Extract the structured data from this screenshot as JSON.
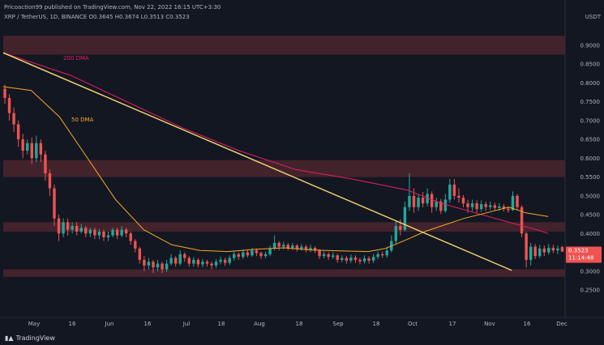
{
  "header": {
    "publisher_line": "Pricoaction99 published on TradingView.com, Nov 22, 2022 16:15 UTC+3:30",
    "symbol": "XRP / TetherUS, 1D, BINANCE",
    "open_label": "O",
    "open_value": "0.3645",
    "high_label": "H",
    "high_value": "0.3674",
    "low_label": "L",
    "low_value": "0.3513",
    "close_label": "C",
    "close_value": "0.3523"
  },
  "axis": {
    "unit": "USDT"
  },
  "badges": {
    "price": "0.3523",
    "countdown": "11:14:48"
  },
  "logo": {
    "text": "TradingView"
  },
  "annotations": {
    "dma200": "200 DMA",
    "dma50": "50 DMA"
  },
  "colors": {
    "background": "#131722",
    "zone": "#ef5350",
    "up": "#26a69a",
    "down": "#ef5350",
    "dma200": "#e91e63",
    "dma50": "#f9a825",
    "trendline": "#f5d76e"
  },
  "chart_data": {
    "type": "candlestick",
    "title": "",
    "ylabel": "USDT",
    "ylim": [
      0.22,
      0.96
    ],
    "grid": false,
    "y_ticks": [
      "0.9000",
      "0.8500",
      "0.8000",
      "0.7500",
      "0.7000",
      "0.6500",
      "0.6000",
      "0.5500",
      "0.5000",
      "0.4500",
      "0.4000",
      "0.3500",
      "0.3000",
      "0.2500"
    ],
    "x_ticks": [
      "May",
      "16",
      "Jun",
      "16",
      "Jul",
      "18",
      "Aug",
      "18",
      "Sep",
      "18",
      "Oct",
      "17",
      "Nov",
      "16",
      "Dec"
    ],
    "zones": [
      [
        0.875,
        0.925
      ],
      [
        0.55,
        0.595
      ],
      [
        0.405,
        0.43
      ],
      [
        0.285,
        0.305
      ]
    ],
    "dma200": [
      [
        0.0,
        0.88
      ],
      [
        0.12,
        0.82
      ],
      [
        0.22,
        0.75
      ],
      [
        0.32,
        0.68
      ],
      [
        0.42,
        0.62
      ],
      [
        0.52,
        0.57
      ],
      [
        0.62,
        0.545
      ],
      [
        0.72,
        0.515
      ],
      [
        0.78,
        0.48
      ],
      [
        0.84,
        0.455
      ],
      [
        0.9,
        0.43
      ],
      [
        0.95,
        0.41
      ],
      [
        0.97,
        0.4
      ]
    ],
    "dma50": [
      [
        0.0,
        0.79
      ],
      [
        0.05,
        0.78
      ],
      [
        0.1,
        0.71
      ],
      [
        0.15,
        0.6
      ],
      [
        0.2,
        0.49
      ],
      [
        0.25,
        0.41
      ],
      [
        0.3,
        0.37
      ],
      [
        0.35,
        0.355
      ],
      [
        0.4,
        0.352
      ],
      [
        0.45,
        0.358
      ],
      [
        0.5,
        0.362
      ],
      [
        0.55,
        0.356
      ],
      [
        0.6,
        0.354
      ],
      [
        0.65,
        0.352
      ],
      [
        0.68,
        0.36
      ],
      [
        0.72,
        0.385
      ],
      [
        0.75,
        0.405
      ],
      [
        0.78,
        0.42
      ],
      [
        0.82,
        0.44
      ],
      [
        0.86,
        0.455
      ],
      [
        0.9,
        0.47
      ],
      [
        0.93,
        0.455
      ],
      [
        0.97,
        0.445
      ]
    ],
    "trendline": [
      [
        0.0,
        0.88
      ],
      [
        0.905,
        0.302
      ]
    ],
    "candles": [
      [
        0.0,
        0.785,
        0.76,
        0.795,
        0.745
      ],
      [
        0.008,
        0.76,
        0.72,
        0.77,
        0.7
      ],
      [
        0.016,
        0.72,
        0.69,
        0.735,
        0.67
      ],
      [
        0.024,
        0.69,
        0.65,
        0.7,
        0.63
      ],
      [
        0.032,
        0.65,
        0.62,
        0.665,
        0.6
      ],
      [
        0.04,
        0.62,
        0.64,
        0.65,
        0.61
      ],
      [
        0.048,
        0.64,
        0.6,
        0.655,
        0.585
      ],
      [
        0.056,
        0.6,
        0.64,
        0.66,
        0.59
      ],
      [
        0.064,
        0.64,
        0.61,
        0.65,
        0.59
      ],
      [
        0.072,
        0.61,
        0.56,
        0.62,
        0.54
      ],
      [
        0.08,
        0.56,
        0.52,
        0.57,
        0.5
      ],
      [
        0.088,
        0.52,
        0.44,
        0.53,
        0.42
      ],
      [
        0.096,
        0.44,
        0.4,
        0.45,
        0.38
      ],
      [
        0.104,
        0.4,
        0.43,
        0.44,
        0.39
      ],
      [
        0.112,
        0.43,
        0.41,
        0.44,
        0.395
      ],
      [
        0.12,
        0.41,
        0.42,
        0.43,
        0.4
      ],
      [
        0.128,
        0.42,
        0.405,
        0.43,
        0.395
      ],
      [
        0.136,
        0.405,
        0.415,
        0.425,
        0.4
      ],
      [
        0.144,
        0.415,
        0.4,
        0.42,
        0.39
      ],
      [
        0.152,
        0.4,
        0.41,
        0.415,
        0.39
      ],
      [
        0.16,
        0.41,
        0.395,
        0.415,
        0.385
      ],
      [
        0.168,
        0.395,
        0.405,
        0.412,
        0.385
      ],
      [
        0.176,
        0.405,
        0.39,
        0.41,
        0.38
      ],
      [
        0.184,
        0.39,
        0.395,
        0.405,
        0.38
      ],
      [
        0.192,
        0.395,
        0.41,
        0.415,
        0.39
      ],
      [
        0.2,
        0.41,
        0.395,
        0.415,
        0.385
      ],
      [
        0.208,
        0.395,
        0.41,
        0.42,
        0.39
      ],
      [
        0.216,
        0.41,
        0.4,
        0.415,
        0.39
      ],
      [
        0.224,
        0.4,
        0.38,
        0.405,
        0.37
      ],
      [
        0.232,
        0.38,
        0.36,
        0.385,
        0.35
      ],
      [
        0.24,
        0.36,
        0.33,
        0.365,
        0.32
      ],
      [
        0.248,
        0.33,
        0.315,
        0.34,
        0.3
      ],
      [
        0.256,
        0.315,
        0.325,
        0.335,
        0.305
      ],
      [
        0.264,
        0.325,
        0.31,
        0.33,
        0.295
      ],
      [
        0.272,
        0.31,
        0.32,
        0.33,
        0.3
      ],
      [
        0.28,
        0.32,
        0.305,
        0.325,
        0.295
      ],
      [
        0.288,
        0.305,
        0.32,
        0.33,
        0.298
      ],
      [
        0.296,
        0.32,
        0.335,
        0.345,
        0.315
      ],
      [
        0.304,
        0.335,
        0.32,
        0.34,
        0.312
      ],
      [
        0.312,
        0.32,
        0.345,
        0.355,
        0.315
      ],
      [
        0.32,
        0.345,
        0.335,
        0.35,
        0.325
      ],
      [
        0.328,
        0.335,
        0.32,
        0.34,
        0.312
      ],
      [
        0.336,
        0.32,
        0.33,
        0.338,
        0.312
      ],
      [
        0.344,
        0.33,
        0.318,
        0.335,
        0.31
      ],
      [
        0.352,
        0.318,
        0.325,
        0.332,
        0.31
      ],
      [
        0.36,
        0.325,
        0.32,
        0.33,
        0.312
      ],
      [
        0.368,
        0.32,
        0.315,
        0.325,
        0.305
      ],
      [
        0.376,
        0.315,
        0.325,
        0.332,
        0.308
      ],
      [
        0.384,
        0.325,
        0.33,
        0.338,
        0.318
      ],
      [
        0.392,
        0.33,
        0.322,
        0.336,
        0.314
      ],
      [
        0.4,
        0.322,
        0.335,
        0.342,
        0.316
      ],
      [
        0.408,
        0.335,
        0.345,
        0.352,
        0.328
      ],
      [
        0.416,
        0.345,
        0.338,
        0.35,
        0.33
      ],
      [
        0.424,
        0.338,
        0.35,
        0.358,
        0.332
      ],
      [
        0.432,
        0.35,
        0.342,
        0.356,
        0.336
      ],
      [
        0.44,
        0.342,
        0.355,
        0.362,
        0.338
      ],
      [
        0.448,
        0.355,
        0.348,
        0.36,
        0.34
      ],
      [
        0.456,
        0.348,
        0.34,
        0.352,
        0.332
      ],
      [
        0.464,
        0.34,
        0.345,
        0.352,
        0.334
      ],
      [
        0.472,
        0.345,
        0.36,
        0.368,
        0.34
      ],
      [
        0.48,
        0.36,
        0.375,
        0.395,
        0.355
      ],
      [
        0.488,
        0.375,
        0.365,
        0.38,
        0.355
      ],
      [
        0.496,
        0.365,
        0.37,
        0.378,
        0.358
      ],
      [
        0.504,
        0.37,
        0.362,
        0.375,
        0.355
      ],
      [
        0.512,
        0.362,
        0.368,
        0.375,
        0.356
      ],
      [
        0.52,
        0.368,
        0.36,
        0.372,
        0.352
      ],
      [
        0.528,
        0.36,
        0.365,
        0.372,
        0.354
      ],
      [
        0.536,
        0.365,
        0.358,
        0.37,
        0.35
      ],
      [
        0.544,
        0.358,
        0.362,
        0.37,
        0.35
      ],
      [
        0.552,
        0.362,
        0.355,
        0.366,
        0.348
      ],
      [
        0.56,
        0.355,
        0.34,
        0.358,
        0.332
      ],
      [
        0.568,
        0.34,
        0.345,
        0.352,
        0.334
      ],
      [
        0.576,
        0.345,
        0.338,
        0.35,
        0.33
      ],
      [
        0.584,
        0.338,
        0.342,
        0.35,
        0.332
      ],
      [
        0.592,
        0.342,
        0.33,
        0.346,
        0.322
      ],
      [
        0.6,
        0.33,
        0.335,
        0.342,
        0.324
      ],
      [
        0.608,
        0.335,
        0.328,
        0.34,
        0.32
      ],
      [
        0.616,
        0.328,
        0.336,
        0.344,
        0.322
      ],
      [
        0.624,
        0.336,
        0.33,
        0.342,
        0.322
      ],
      [
        0.632,
        0.33,
        0.326,
        0.336,
        0.318
      ],
      [
        0.64,
        0.326,
        0.334,
        0.342,
        0.32
      ],
      [
        0.648,
        0.334,
        0.328,
        0.34,
        0.32
      ],
      [
        0.656,
        0.328,
        0.338,
        0.346,
        0.322
      ],
      [
        0.664,
        0.338,
        0.345,
        0.352,
        0.332
      ],
      [
        0.672,
        0.345,
        0.342,
        0.352,
        0.335
      ],
      [
        0.68,
        0.342,
        0.355,
        0.365,
        0.336
      ],
      [
        0.688,
        0.355,
        0.38,
        0.395,
        0.35
      ],
      [
        0.696,
        0.38,
        0.42,
        0.435,
        0.372
      ],
      [
        0.704,
        0.42,
        0.41,
        0.438,
        0.395
      ],
      [
        0.712,
        0.41,
        0.47,
        0.485,
        0.405
      ],
      [
        0.72,
        0.47,
        0.5,
        0.56,
        0.46
      ],
      [
        0.728,
        0.5,
        0.47,
        0.52,
        0.455
      ],
      [
        0.736,
        0.47,
        0.495,
        0.505,
        0.46
      ],
      [
        0.744,
        0.495,
        0.48,
        0.51,
        0.47
      ],
      [
        0.752,
        0.48,
        0.505,
        0.52,
        0.472
      ],
      [
        0.76,
        0.505,
        0.47,
        0.512,
        0.455
      ],
      [
        0.768,
        0.47,
        0.485,
        0.495,
        0.46
      ],
      [
        0.776,
        0.485,
        0.46,
        0.492,
        0.452
      ],
      [
        0.784,
        0.46,
        0.49,
        0.505,
        0.455
      ],
      [
        0.792,
        0.49,
        0.53,
        0.545,
        0.482
      ],
      [
        0.8,
        0.53,
        0.5,
        0.545,
        0.49
      ],
      [
        0.808,
        0.5,
        0.495,
        0.52,
        0.482
      ],
      [
        0.816,
        0.495,
        0.48,
        0.502,
        0.47
      ],
      [
        0.824,
        0.48,
        0.47,
        0.49,
        0.455
      ],
      [
        0.832,
        0.47,
        0.48,
        0.49,
        0.46
      ],
      [
        0.84,
        0.48,
        0.465,
        0.488,
        0.455
      ],
      [
        0.848,
        0.465,
        0.478,
        0.488,
        0.458
      ],
      [
        0.856,
        0.478,
        0.47,
        0.485,
        0.46
      ],
      [
        0.864,
        0.47,
        0.475,
        0.485,
        0.462
      ],
      [
        0.872,
        0.475,
        0.468,
        0.482,
        0.46
      ],
      [
        0.88,
        0.468,
        0.472,
        0.48,
        0.46
      ],
      [
        0.888,
        0.472,
        0.466,
        0.478,
        0.458
      ],
      [
        0.896,
        0.466,
        0.462,
        0.472,
        0.455
      ],
      [
        0.904,
        0.462,
        0.5,
        0.512,
        0.46
      ],
      [
        0.912,
        0.5,
        0.47,
        0.505,
        0.462
      ],
      [
        0.92,
        0.47,
        0.4,
        0.475,
        0.39
      ],
      [
        0.928,
        0.4,
        0.33,
        0.405,
        0.31
      ],
      [
        0.936,
        0.33,
        0.365,
        0.375,
        0.315
      ],
      [
        0.944,
        0.365,
        0.34,
        0.372,
        0.332
      ],
      [
        0.952,
        0.34,
        0.36,
        0.37,
        0.335
      ],
      [
        0.96,
        0.36,
        0.35,
        0.368,
        0.34
      ],
      [
        0.968,
        0.35,
        0.362,
        0.372,
        0.344
      ],
      [
        0.976,
        0.362,
        0.355,
        0.37,
        0.348
      ],
      [
        0.984,
        0.355,
        0.36,
        0.368,
        0.345
      ],
      [
        0.992,
        0.364,
        0.352,
        0.367,
        0.351
      ]
    ]
  }
}
